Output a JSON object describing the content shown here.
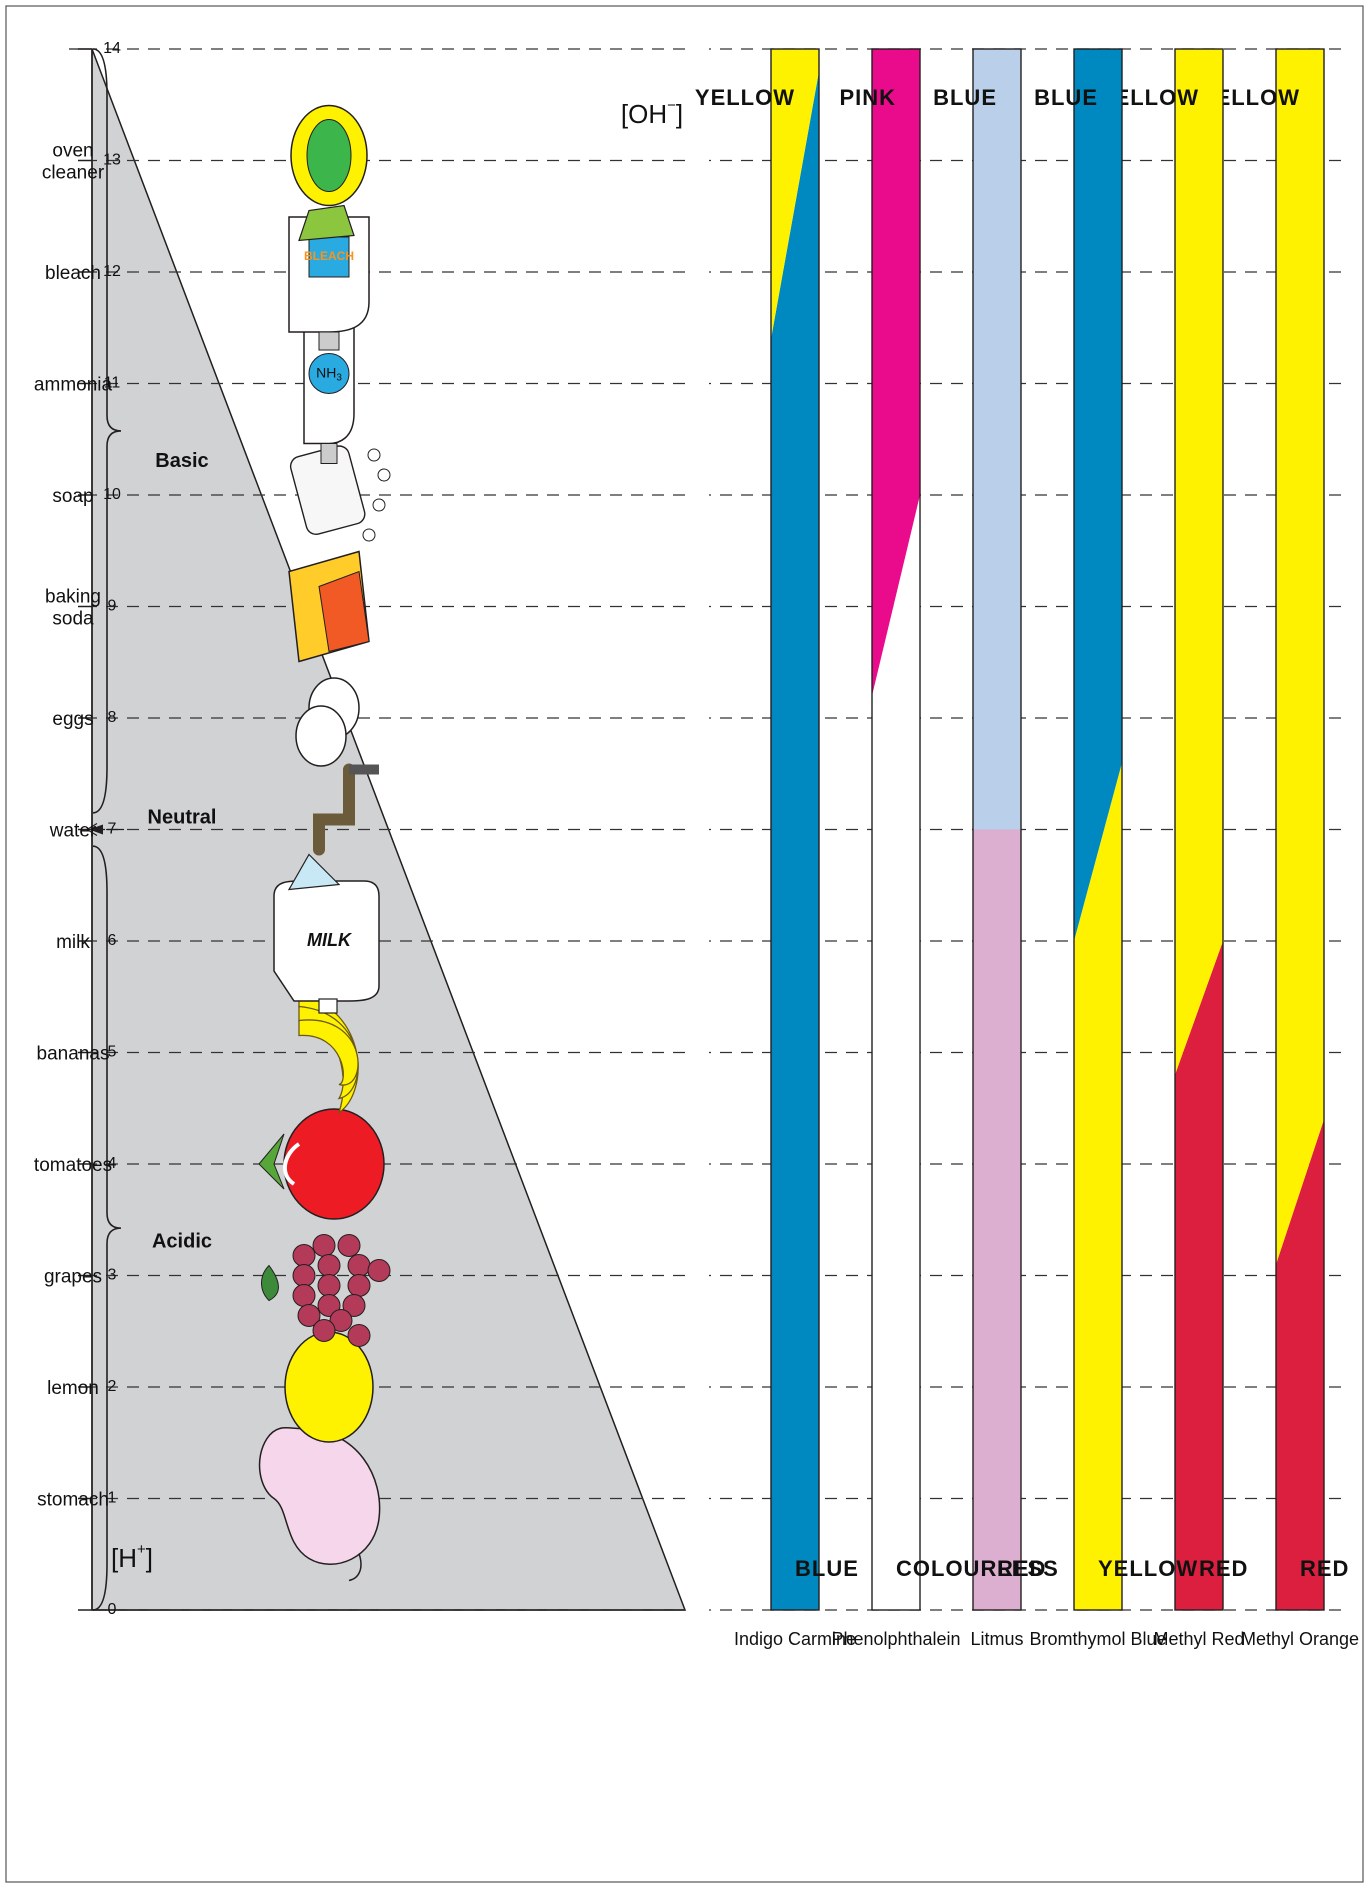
{
  "colors": {
    "acid_triangle": "#d1d2d4",
    "red": "#dc1f3f",
    "yellow": "#fff200",
    "blue": "#0089c0",
    "litmus_red": "#dcaed0",
    "litmus_blue": "#b9cfea",
    "pink": "#ea0b8c",
    "white": "#ffffff",
    "outline": "#231f20"
  },
  "ph_scale": {
    "ticks": [
      "0",
      "1",
      "2",
      "3",
      "4",
      "5",
      "6",
      "7",
      "8",
      "9",
      "10",
      "11",
      "12",
      "13",
      "14"
    ]
  },
  "ions": {
    "h_base": "[H",
    "h_sup": "+",
    "h_end": "]",
    "oh_base": "[OH",
    "oh_sup": "−",
    "oh_end": "]"
  },
  "regions": {
    "acidic": "Acidic",
    "neutral": "Neutral",
    "basic": "Basic"
  },
  "substances": [
    {
      "ph": 1,
      "label": [
        "stomach"
      ],
      "icon": "stomach-icon"
    },
    {
      "ph": 2,
      "label": [
        "lemon"
      ],
      "icon": "lemon-icon"
    },
    {
      "ph": 3,
      "label": [
        "grapes"
      ],
      "icon": "grapes-icon"
    },
    {
      "ph": 4,
      "label": [
        "tomatoes"
      ],
      "icon": "tomato-icon"
    },
    {
      "ph": 5,
      "label": [
        "bananas"
      ],
      "icon": "bananas-icon"
    },
    {
      "ph": 6,
      "label": [
        "milk"
      ],
      "icon": "milk-jug-icon"
    },
    {
      "ph": 7,
      "label": [
        "water"
      ],
      "icon": "tap-water-icon"
    },
    {
      "ph": 8,
      "label": [
        "eggs"
      ],
      "icon": "eggs-icon"
    },
    {
      "ph": 9,
      "label": [
        "baking",
        "soda"
      ],
      "icon": "baking-soda-box-icon"
    },
    {
      "ph": 10,
      "label": [
        "soap"
      ],
      "icon": "soap-bar-icon"
    },
    {
      "ph": 11,
      "label": [
        "ammonia"
      ],
      "icon": "ammonia-bottle-icon"
    },
    {
      "ph": 12,
      "label": [
        "bleach"
      ],
      "icon": "bleach-bottle-icon"
    },
    {
      "ph": 13,
      "label": [
        "oven",
        "cleaner"
      ],
      "icon": "spray-bottle-icon"
    }
  ],
  "icon_text": {
    "milk": "MILK",
    "ammonia": "NH",
    "ammonia_sub": "3",
    "bleach": "BLEACH"
  },
  "indicators": [
    {
      "name": "Methyl Orange",
      "acid_color": "red",
      "base_color": "yellow",
      "transition": [
        3.1,
        4.4
      ],
      "acid_label": "RED",
      "base_label": "YELLOW"
    },
    {
      "name": "Methyl Red",
      "acid_color": "red",
      "base_color": "yellow",
      "transition": [
        4.8,
        6.0
      ],
      "acid_label": "RED",
      "base_label": "YELLOW"
    },
    {
      "name": "Bromthymol Blue",
      "acid_color": "yellow",
      "base_color": "blue",
      "transition": [
        6.0,
        7.6
      ],
      "acid_label": "YELLOW",
      "base_label": "BLUE"
    },
    {
      "name": "Litmus",
      "acid_color": "litmus_red",
      "base_color": "litmus_blue",
      "transition": [
        7.0,
        7.0
      ],
      "acid_label": "RED",
      "base_label": "BLUE"
    },
    {
      "name": "Phenolphthalein",
      "acid_color": "white",
      "base_color": "pink",
      "transition": [
        8.2,
        10.0
      ],
      "acid_label": "COLOURLESS",
      "base_label": "PINK"
    },
    {
      "name": "Indigo Carmine",
      "acid_color": "blue",
      "base_color": "yellow",
      "transition": [
        11.4,
        13.8
      ],
      "acid_label": "BLUE",
      "base_label": "YELLOW"
    }
  ]
}
